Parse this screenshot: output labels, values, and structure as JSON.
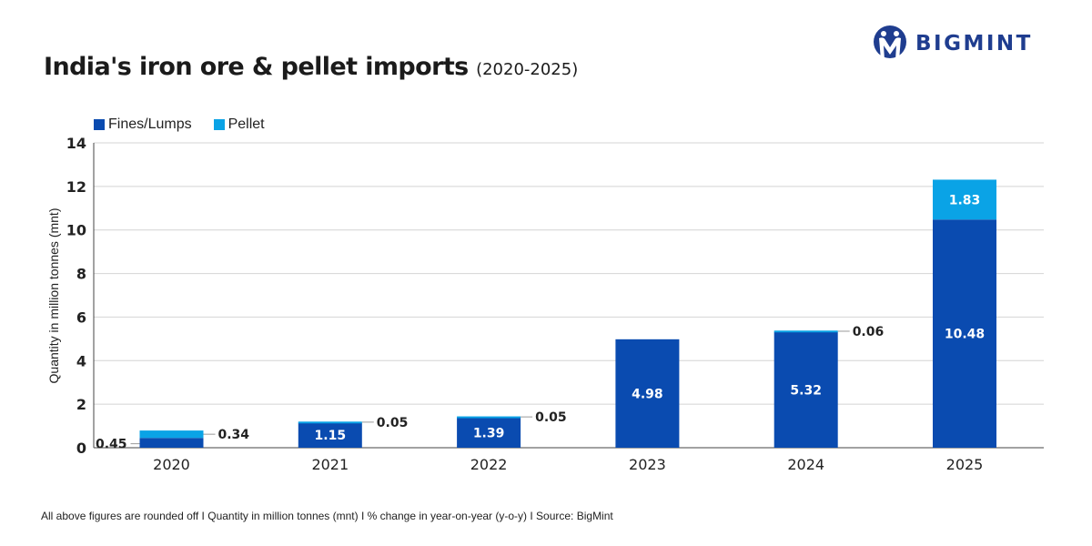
{
  "brand": {
    "name": "BIGMINT",
    "logo_icon": "bigmint-logo-icon",
    "color": "#1f3d8f"
  },
  "title": {
    "main": "India's iron ore & pellet imports",
    "sub": "(2020-2025)"
  },
  "legend": [
    {
      "label": "Fines/Lumps",
      "color": "#0a4bb0"
    },
    {
      "label": "Pellet",
      "color": "#0aa3e6"
    }
  ],
  "footer": "All above figures are rounded off   I   Quantity in million tonnes (mnt)   I   % change in year-on-year (y-o-y)   I   Source: BigMint",
  "chart_data": {
    "type": "bar",
    "stacked": true,
    "categories": [
      "2020",
      "2021",
      "2022",
      "2023",
      "2024",
      "2025"
    ],
    "series": [
      {
        "name": "Fines/Lumps",
        "values": [
          0.45,
          1.15,
          1.39,
          4.98,
          5.32,
          10.48
        ],
        "color": "#0a4bb0"
      },
      {
        "name": "Pellet",
        "values": [
          0.34,
          0.05,
          0.05,
          0,
          0.06,
          1.83
        ],
        "color": "#0aa3e6"
      }
    ],
    "labels": {
      "fines": [
        "0.45",
        "1.15",
        "1.39",
        "4.98",
        "5.32",
        "10.48"
      ],
      "pellet": [
        "0.34",
        "0.05",
        "0.05",
        "",
        "0.06",
        "1.83"
      ]
    },
    "ylabel": "Quantity in million tonnes (mnt)",
    "xlabel": "",
    "ylim": [
      0,
      14
    ],
    "yticks": [
      0,
      2,
      4,
      6,
      8,
      10,
      12,
      14
    ],
    "grid": true,
    "legend_position": "top-left"
  }
}
